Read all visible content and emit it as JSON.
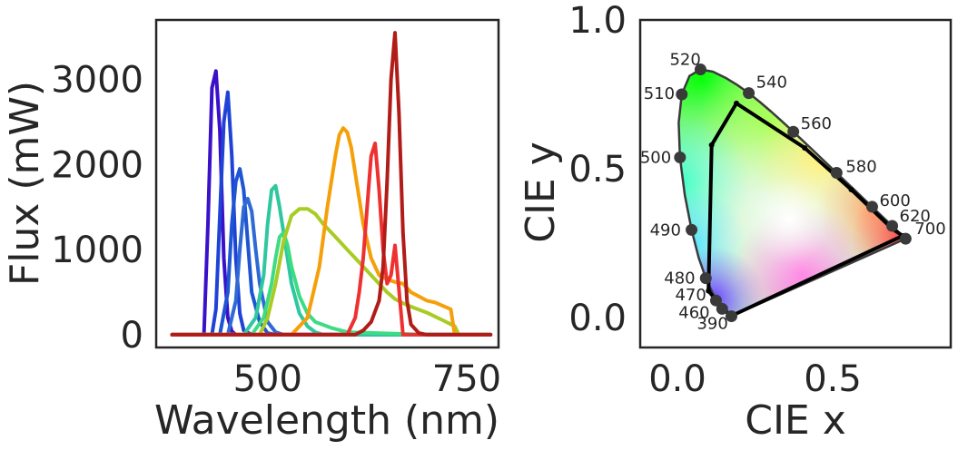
{
  "colors": {
    "axes": "#262626",
    "background": "#ffffff"
  },
  "chart_data": [
    {
      "type": "line",
      "xlabel": "Wavelength (nm)",
      "ylabel": "Flux (mW)",
      "xlim": [
        360,
        790
      ],
      "ylim": [
        -150,
        3700
      ],
      "xticks": [
        500,
        750
      ],
      "yticks": [
        0,
        1000,
        2000,
        3000
      ],
      "grid": false,
      "series": [
        {
          "color": "#3a10c8",
          "x": [
            380,
            420,
            425,
            430,
            435,
            440,
            445,
            450,
            455,
            460,
            470,
            480,
            780
          ],
          "values": [
            0,
            0,
            1300,
            2900,
            3100,
            2400,
            900,
            200,
            40,
            0,
            0,
            0,
            0
          ]
        },
        {
          "color": "#1f43d6",
          "x": [
            380,
            430,
            435,
            440,
            445,
            450,
            455,
            460,
            465,
            470,
            480,
            490,
            780
          ],
          "values": [
            0,
            0,
            300,
            1400,
            2500,
            2850,
            2100,
            900,
            250,
            50,
            0,
            0,
            0
          ]
        },
        {
          "color": "#1d55d2",
          "x": [
            380,
            440,
            450,
            455,
            460,
            465,
            470,
            475,
            480,
            490,
            500,
            510,
            780
          ],
          "values": [
            0,
            0,
            500,
            1300,
            1800,
            1950,
            1700,
            1100,
            500,
            150,
            20,
            0,
            0
          ]
        },
        {
          "color": "#2f6ad4",
          "x": [
            380,
            450,
            460,
            465,
            470,
            475,
            480,
            485,
            490,
            500,
            510,
            520,
            780
          ],
          "values": [
            0,
            0,
            400,
            1000,
            1500,
            1600,
            1450,
            1000,
            600,
            150,
            30,
            0,
            0
          ]
        },
        {
          "color": "#2fc7a0",
          "x": [
            380,
            470,
            485,
            495,
            500,
            505,
            510,
            515,
            520,
            530,
            540,
            550,
            560,
            570,
            780
          ],
          "values": [
            0,
            0,
            200,
            700,
            1300,
            1700,
            1750,
            1500,
            1200,
            600,
            250,
            100,
            30,
            0,
            0
          ]
        },
        {
          "color": "#3ddc84",
          "x": [
            380,
            480,
            495,
            505,
            510,
            515,
            520,
            525,
            530,
            540,
            550,
            560,
            580,
            600,
            700,
            780
          ],
          "values": [
            0,
            0,
            200,
            600,
            900,
            1150,
            1200,
            1050,
            800,
            450,
            250,
            150,
            80,
            30,
            0,
            0
          ]
        },
        {
          "color": "#a8cc24",
          "x": [
            380,
            490,
            500,
            510,
            520,
            530,
            540,
            550,
            560,
            570,
            580,
            590,
            600,
            610,
            620,
            630,
            640,
            650,
            660,
            670,
            680,
            700,
            720,
            735,
            740,
            780
          ],
          "values": [
            0,
            0,
            200,
            600,
            1100,
            1400,
            1480,
            1480,
            1420,
            1300,
            1200,
            1100,
            1000,
            900,
            800,
            700,
            600,
            500,
            420,
            370,
            330,
            260,
            170,
            100,
            0,
            0
          ]
        },
        {
          "color": "#f5a00a",
          "x": [
            380,
            530,
            550,
            565,
            575,
            585,
            590,
            595,
            600,
            605,
            610,
            620,
            630,
            640,
            650,
            660,
            670,
            680,
            690,
            700,
            710,
            720,
            730,
            735,
            780
          ],
          "values": [
            0,
            0,
            200,
            800,
            1500,
            2100,
            2350,
            2430,
            2380,
            2200,
            1900,
            1300,
            900,
            700,
            650,
            620,
            600,
            500,
            450,
            400,
            380,
            340,
            300,
            0,
            0
          ]
        },
        {
          "color": "#ee3030",
          "x": [
            380,
            600,
            610,
            615,
            620,
            625,
            630,
            635,
            640,
            645,
            650,
            655,
            660,
            670,
            780
          ],
          "values": [
            0,
            0,
            200,
            500,
            900,
            1500,
            2100,
            2250,
            1700,
            1000,
            600,
            700,
            1050,
            0,
            0
          ]
        },
        {
          "color": "#b01c18",
          "x": [
            380,
            610,
            620,
            630,
            640,
            645,
            650,
            655,
            660,
            665,
            670,
            675,
            680,
            690,
            700,
            780
          ],
          "values": [
            0,
            0,
            50,
            150,
            400,
            800,
            1800,
            3000,
            3550,
            2600,
            1200,
            400,
            120,
            20,
            0,
            0
          ]
        }
      ]
    },
    {
      "type": "scatter",
      "title": "",
      "xlabel": "CIE x",
      "ylabel": "CIE y",
      "xlim": [
        -0.12,
        0.88
      ],
      "ylim": [
        -0.1,
        1.0
      ],
      "xticks": [
        0.0,
        0.5
      ],
      "yticks": [
        0.0,
        0.5,
        1.0
      ],
      "grid": false,
      "spectral_locus": [
        [
          0.1741,
          0.005
        ],
        [
          0.1738,
          0.0049
        ],
        [
          0.1733,
          0.0048
        ],
        [
          0.1726,
          0.0048
        ],
        [
          0.1714,
          0.0051
        ],
        [
          0.1689,
          0.0069
        ],
        [
          0.1644,
          0.0109
        ],
        [
          0.1566,
          0.0177
        ],
        [
          0.144,
          0.0297
        ],
        [
          0.1241,
          0.0578
        ],
        [
          0.0913,
          0.1327
        ],
        [
          0.0687,
          0.2007
        ],
        [
          0.0454,
          0.295
        ],
        [
          0.0235,
          0.4127
        ],
        [
          0.0082,
          0.5384
        ],
        [
          0.0039,
          0.6548
        ],
        [
          0.0139,
          0.7502
        ],
        [
          0.0389,
          0.812
        ],
        [
          0.0743,
          0.8338
        ],
        [
          0.1142,
          0.8262
        ],
        [
          0.1547,
          0.8059
        ],
        [
          0.1929,
          0.7816
        ],
        [
          0.2296,
          0.7543
        ],
        [
          0.2658,
          0.7243
        ],
        [
          0.3016,
          0.6923
        ],
        [
          0.3373,
          0.6589
        ],
        [
          0.3731,
          0.6245
        ],
        [
          0.4087,
          0.5896
        ],
        [
          0.4441,
          0.5547
        ],
        [
          0.4788,
          0.5202
        ],
        [
          0.5125,
          0.4866
        ],
        [
          0.5448,
          0.4544
        ],
        [
          0.5752,
          0.4242
        ],
        [
          0.6029,
          0.3965
        ],
        [
          0.627,
          0.3725
        ],
        [
          0.6482,
          0.3514
        ],
        [
          0.6658,
          0.334
        ],
        [
          0.6801,
          0.3197
        ],
        [
          0.6915,
          0.3083
        ],
        [
          0.7006,
          0.2993
        ],
        [
          0.7079,
          0.292
        ],
        [
          0.714,
          0.2859
        ],
        [
          0.719,
          0.2809
        ],
        [
          0.723,
          0.277
        ],
        [
          0.726,
          0.274
        ],
        [
          0.7283,
          0.2717
        ],
        [
          0.73,
          0.27
        ],
        [
          0.7347,
          0.2653
        ]
      ],
      "wavelength_markers": [
        {
          "label": "390",
          "x": 0.1738,
          "y": 0.0049
        },
        {
          "label": "460",
          "x": 0.144,
          "y": 0.0297
        },
        {
          "label": "470",
          "x": 0.1241,
          "y": 0.0578
        },
        {
          "label": "480",
          "x": 0.0913,
          "y": 0.1327
        },
        {
          "label": "490",
          "x": 0.0454,
          "y": 0.295
        },
        {
          "label": "500",
          "x": 0.0082,
          "y": 0.5384
        },
        {
          "label": "510",
          "x": 0.0139,
          "y": 0.7502
        },
        {
          "label": "520",
          "x": 0.0743,
          "y": 0.8338
        },
        {
          "label": "540",
          "x": 0.2296,
          "y": 0.7543
        },
        {
          "label": "560",
          "x": 0.3731,
          "y": 0.6245
        },
        {
          "label": "580",
          "x": 0.5125,
          "y": 0.4866
        },
        {
          "label": "600",
          "x": 0.627,
          "y": 0.3725
        },
        {
          "label": "620",
          "x": 0.6915,
          "y": 0.3083
        },
        {
          "label": "700",
          "x": 0.7347,
          "y": 0.2653
        }
      ],
      "led_gamut": [
        [
          0.172,
          0.005
        ],
        [
          0.138,
          0.042
        ],
        [
          0.1,
          0.09
        ],
        [
          0.11,
          0.58
        ],
        [
          0.19,
          0.72
        ],
        [
          0.41,
          0.57
        ],
        [
          0.56,
          0.43
        ],
        [
          0.69,
          0.3
        ],
        [
          0.725,
          0.275
        ],
        [
          0.172,
          0.005
        ]
      ]
    }
  ]
}
